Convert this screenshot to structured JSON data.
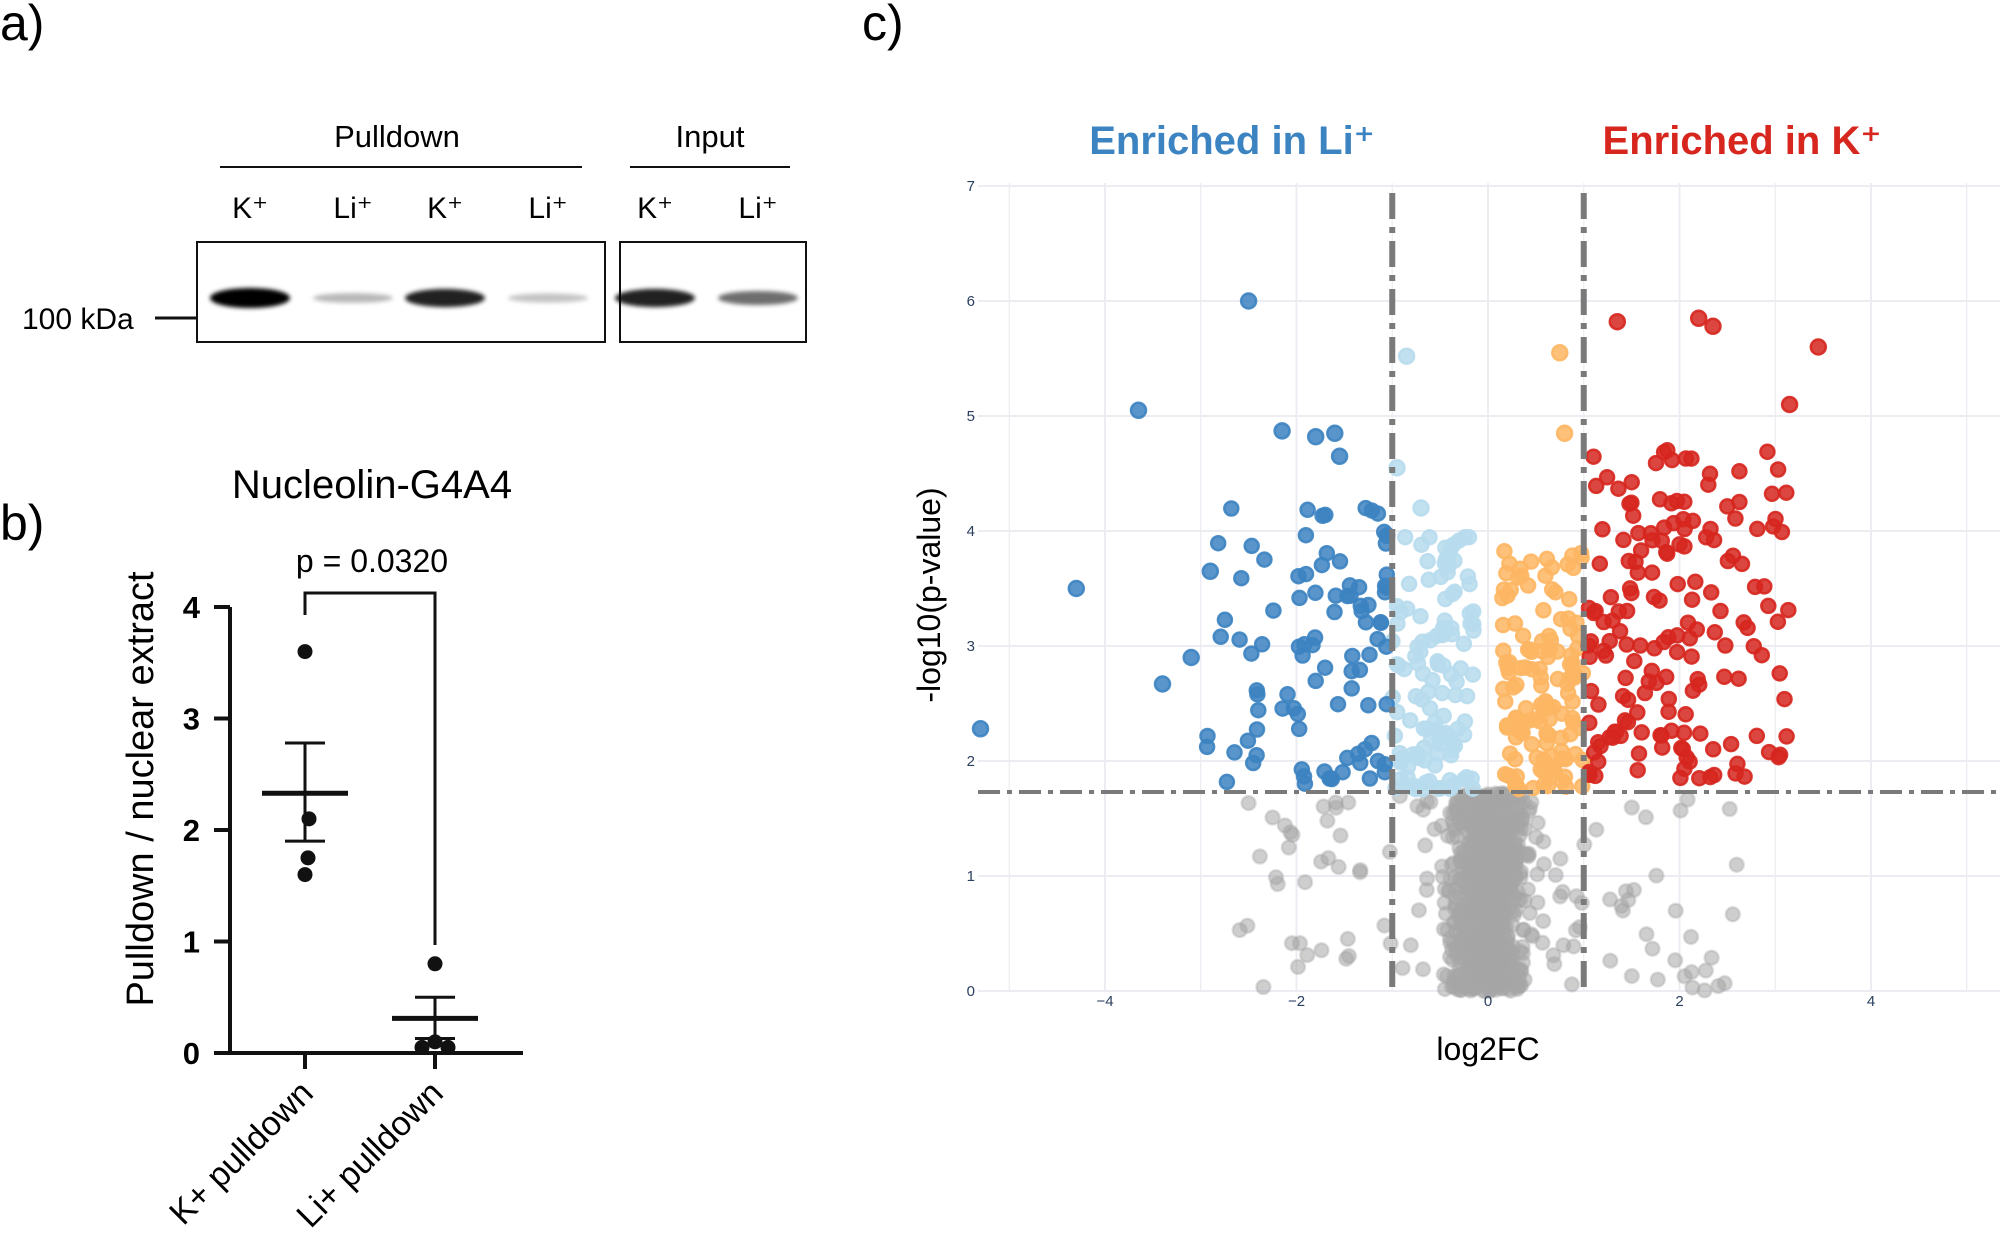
{
  "panel_labels": {
    "a": "a)",
    "b": "b)",
    "c": "c)"
  },
  "panel_a": {
    "group_pulldown": "Pulldown",
    "group_input": "Input",
    "lanes": [
      "K⁺",
      "Li⁺",
      "K⁺",
      "Li⁺",
      "K⁺",
      "Li⁺"
    ],
    "marker_label": "100 kDa",
    "band_intensity": [
      1.0,
      0.15,
      0.85,
      0.1,
      0.85,
      0.5
    ]
  },
  "chart_data": [
    {
      "type": "scatter",
      "title": "Nucleolin-G4A4",
      "ylabel": "Pulldown / nuclear extract",
      "xlabel": "",
      "ylim": [
        0,
        4
      ],
      "yticks": [
        "0",
        "1",
        "2",
        "3",
        "4"
      ],
      "categories": [
        "K+ pulldown",
        "Li+ pulldown"
      ],
      "points": [
        [
          3.6,
          2.1,
          1.75,
          1.6
        ],
        [
          0.8,
          0.1,
          0.05,
          0.05
        ]
      ],
      "means": [
        2.33,
        0.31
      ],
      "sem": [
        [
          1.9,
          2.78
        ],
        [
          0.13,
          0.5
        ]
      ],
      "annotation": "p = 0.0320"
    },
    {
      "type": "scatter",
      "xlabel": "log2FC",
      "ylabel": "-log10(p-value)",
      "xlim": [
        -5.4,
        5.3
      ],
      "ylim": [
        0,
        7
      ],
      "xticks": [
        {
          "v": -4,
          "t": "−4"
        },
        {
          "v": -2,
          "t": "−2"
        },
        {
          "v": 0,
          "t": "0"
        },
        {
          "v": 2,
          "t": "2"
        },
        {
          "v": 4,
          "t": "4"
        }
      ],
      "yticks": [
        "0",
        "1",
        "2",
        "3",
        "4",
        "5",
        "6",
        "7"
      ],
      "thresholds": {
        "log2fc": [
          -1,
          1
        ],
        "neg_log10_p": 1.73
      },
      "label_left": "Enriched in Li⁺",
      "label_right": "Enriched in K⁺",
      "colors": {
        "enriched_li": "#3c83c1",
        "trend_li": "#b7dced",
        "trend_k": "#fdb663",
        "enriched_k": "#d6261e",
        "not_significant": "#a6a6a6"
      },
      "highlighted_points": [
        [
          -5.3,
          2.28
        ],
        [
          -4.3,
          3.5
        ],
        [
          -3.65,
          5.05
        ],
        [
          -3.4,
          2.67
        ],
        [
          -3.1,
          2.9
        ],
        [
          -2.9,
          3.65
        ],
        [
          -2.5,
          6.0
        ],
        [
          -2.15,
          4.87
        ],
        [
          -1.8,
          4.82
        ],
        [
          -1.6,
          4.85
        ],
        [
          -1.55,
          4.65
        ],
        [
          -0.85,
          5.52
        ],
        [
          1.35,
          5.82
        ],
        [
          2.2,
          5.85
        ],
        [
          2.35,
          5.78
        ],
        [
          3.45,
          5.6
        ],
        [
          3.15,
          5.1
        ],
        [
          0.75,
          5.55
        ],
        [
          0.8,
          4.85
        ],
        [
          -0.95,
          4.55
        ],
        [
          -0.7,
          4.2
        ]
      ]
    }
  ]
}
